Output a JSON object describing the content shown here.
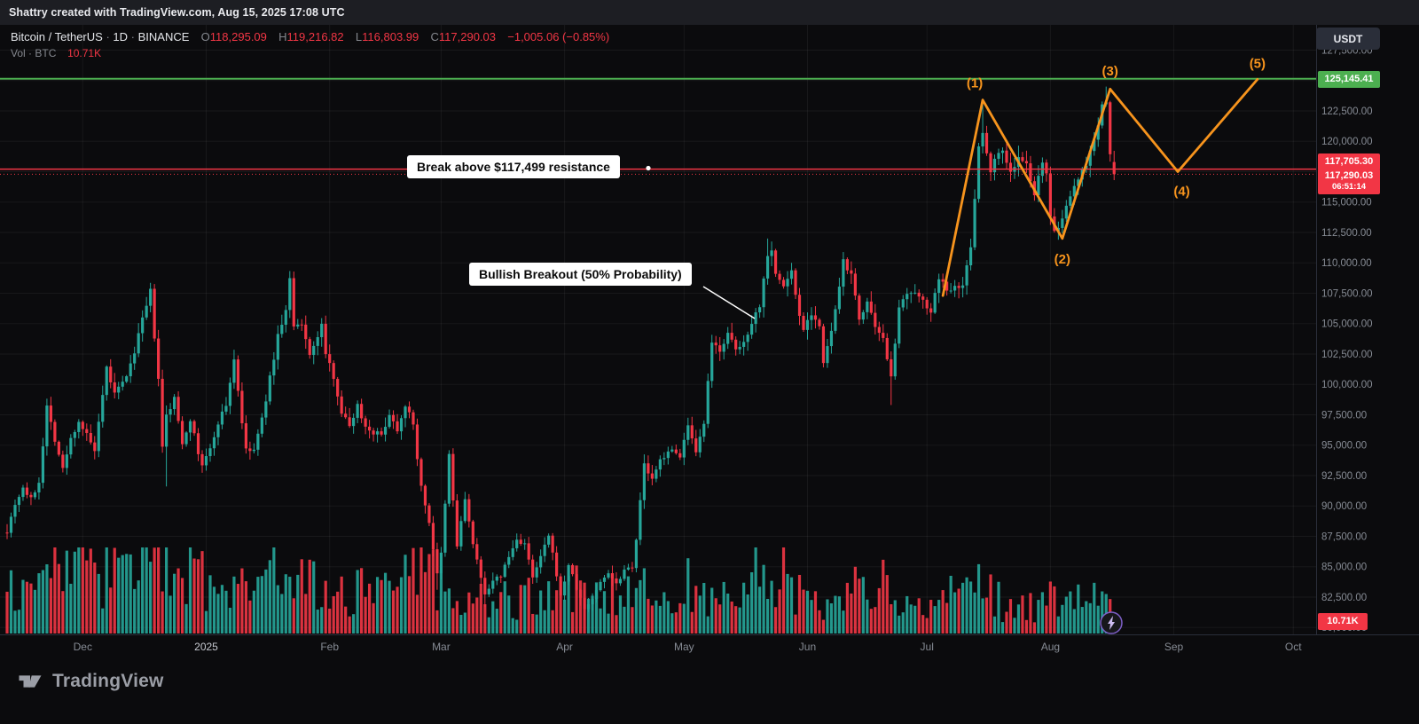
{
  "header": {
    "credit": "Shattry created with TradingView.com, Aug 15, 2025 17:08 UTC"
  },
  "legend": {
    "symbol": "Bitcoin / TetherUS",
    "sep": "·",
    "interval": "1D",
    "exchange": "BINANCE",
    "o_label": "O",
    "o_value": "118,295.09",
    "h_label": "H",
    "h_value": "119,216.82",
    "l_label": "L",
    "l_value": "116,803.99",
    "c_label": "C",
    "c_value": "117,290.03",
    "change": "−1,005.06 (−0.85%)",
    "vol_label": "Vol",
    "vol_unit": "BTC",
    "vol_value": "10.71K"
  },
  "toolbar": {
    "currency": "USDT"
  },
  "callouts": {
    "resistance": "Break above $117,499 resistance",
    "breakout": "Bullish Breakout (50% Probability)"
  },
  "price_badges": {
    "green": "125,145.41",
    "red_level": "117,705.30",
    "last": "117,290.03",
    "countdown": "06:51:14",
    "volume": "10.71K"
  },
  "footer": {
    "brand": "TradingView"
  },
  "chart_data": {
    "type": "candlestick",
    "symbol": "Bitcoin / TetherUS · 1D · BINANCE",
    "days": 278,
    "colors": {
      "up": "#26a69a",
      "down": "#f23645",
      "wave": "#f7941d",
      "green_line": "#4caf50",
      "red_line": "#f23645",
      "axis_text": "#868b94",
      "grid": "rgba(255,255,255,0.055)"
    },
    "y_ticks": [
      127500,
      125000,
      122500,
      120000,
      117500,
      115000,
      112500,
      110000,
      107500,
      105000,
      102500,
      100000,
      97500,
      95000,
      92500,
      90000,
      87500,
      85000,
      82500,
      80000
    ],
    "x_ticks": [
      {
        "label": "Dec",
        "day": 19
      },
      {
        "label": "2025",
        "day": 50,
        "major": true
      },
      {
        "label": "Feb",
        "day": 81
      },
      {
        "label": "Mar",
        "day": 109
      },
      {
        "label": "Apr",
        "day": 140
      },
      {
        "label": "May",
        "day": 170
      },
      {
        "label": "Jun",
        "day": 201
      },
      {
        "label": "Jul",
        "day": 231
      },
      {
        "label": "Aug",
        "day": 262
      },
      {
        "label": "Sep",
        "day": 293
      },
      {
        "label": "Oct",
        "day": 323
      }
    ],
    "levels": {
      "green_line": 125145.41,
      "red_line": 117705.3,
      "last_price": 117290.03
    },
    "last_candle": {
      "open": 118295.09,
      "high": 119216.82,
      "low": 116803.99,
      "close": 117290.03
    },
    "price_anchors": [
      [
        0,
        88000
      ],
      [
        2,
        90200
      ],
      [
        4,
        91500
      ],
      [
        6,
        90500
      ],
      [
        8,
        92000
      ],
      [
        10,
        98200
      ],
      [
        12,
        95500
      ],
      [
        14,
        93000
      ],
      [
        16,
        95500
      ],
      [
        18,
        97000
      ],
      [
        20,
        95800
      ],
      [
        22,
        94500
      ],
      [
        24,
        98900
      ],
      [
        25,
        101300
      ],
      [
        27,
        99200
      ],
      [
        29,
        100100
      ],
      [
        31,
        101500
      ],
      [
        33,
        104100
      ],
      [
        35,
        106400
      ],
      [
        36,
        107600
      ],
      [
        38,
        100300
      ],
      [
        39,
        94800
      ],
      [
        40,
        97400
      ],
      [
        42,
        98800
      ],
      [
        44,
        95200
      ],
      [
        46,
        97200
      ],
      [
        48,
        94300
      ],
      [
        49,
        93400
      ],
      [
        51,
        94600
      ],
      [
        53,
        96900
      ],
      [
        55,
        98300
      ],
      [
        57,
        102100
      ],
      [
        59,
        96900
      ],
      [
        60,
        94500
      ],
      [
        62,
        94600
      ],
      [
        64,
        97100
      ],
      [
        66,
        100500
      ],
      [
        68,
        104000
      ],
      [
        70,
        106100
      ],
      [
        71,
        108600
      ],
      [
        72,
        104700
      ],
      [
        74,
        104800
      ],
      [
        76,
        102600
      ],
      [
        78,
        103700
      ],
      [
        79,
        105100
      ],
      [
        80,
        102400
      ],
      [
        82,
        100700
      ],
      [
        84,
        97700
      ],
      [
        86,
        96600
      ],
      [
        88,
        98300
      ],
      [
        90,
        96500
      ],
      [
        92,
        96100
      ],
      [
        94,
        95800
      ],
      [
        96,
        97600
      ],
      [
        98,
        96300
      ],
      [
        100,
        98400
      ],
      [
        102,
        96600
      ],
      [
        104,
        91500
      ],
      [
        106,
        88700
      ],
      [
        108,
        84300
      ],
      [
        109,
        86000
      ],
      [
        111,
        94200
      ],
      [
        113,
        86700
      ],
      [
        115,
        90600
      ],
      [
        117,
        86800
      ],
      [
        119,
        84000
      ],
      [
        120,
        82900
      ],
      [
        122,
        83700
      ],
      [
        124,
        84300
      ],
      [
        126,
        85800
      ],
      [
        128,
        87200
      ],
      [
        130,
        86900
      ],
      [
        132,
        84000
      ],
      [
        134,
        85800
      ],
      [
        136,
        87500
      ],
      [
        138,
        84400
      ],
      [
        139,
        82500
      ],
      [
        141,
        85200
      ],
      [
        143,
        83200
      ],
      [
        145,
        81500
      ],
      [
        147,
        82400
      ],
      [
        149,
        83700
      ],
      [
        151,
        84600
      ],
      [
        153,
        83600
      ],
      [
        155,
        84800
      ],
      [
        157,
        85100
      ],
      [
        158,
        87300
      ],
      [
        160,
        93400
      ],
      [
        162,
        92100
      ],
      [
        164,
        93700
      ],
      [
        166,
        94600
      ],
      [
        168,
        94300
      ],
      [
        169,
        94200
      ],
      [
        171,
        96500
      ],
      [
        173,
        94200
      ],
      [
        175,
        96800
      ],
      [
        177,
        103300
      ],
      [
        179,
        102900
      ],
      [
        181,
        104100
      ],
      [
        183,
        102800
      ],
      [
        185,
        103400
      ],
      [
        187,
        105200
      ],
      [
        189,
        106500
      ],
      [
        191,
        110800
      ],
      [
        192,
        111200
      ],
      [
        193,
        109000
      ],
      [
        195,
        108100
      ],
      [
        197,
        109300
      ],
      [
        199,
        105600
      ],
      [
        200,
        104700
      ],
      [
        202,
        105900
      ],
      [
        204,
        104800
      ],
      [
        205,
        101600
      ],
      [
        207,
        104400
      ],
      [
        209,
        107800
      ],
      [
        210,
        110300
      ],
      [
        212,
        108900
      ],
      [
        214,
        105400
      ],
      [
        216,
        106800
      ],
      [
        218,
        104500
      ],
      [
        220,
        103600
      ],
      [
        222,
        100900
      ],
      [
        224,
        106100
      ],
      [
        226,
        107400
      ],
      [
        228,
        107300
      ],
      [
        230,
        107200
      ],
      [
        232,
        105700
      ],
      [
        234,
        108900
      ],
      [
        236,
        107600
      ],
      [
        238,
        108300
      ],
      [
        240,
        108100
      ],
      [
        242,
        111300
      ],
      [
        243,
        115500
      ],
      [
        244,
        119800
      ],
      [
        245,
        120500
      ],
      [
        246,
        119100
      ],
      [
        247,
        117700
      ],
      [
        248,
        118700
      ],
      [
        250,
        119300
      ],
      [
        252,
        117400
      ],
      [
        254,
        118600
      ],
      [
        256,
        118000
      ],
      [
        258,
        115700
      ],
      [
        260,
        118100
      ],
      [
        261,
        117600
      ],
      [
        262,
        113900
      ],
      [
        263,
        112800
      ],
      [
        264,
        112600
      ],
      [
        266,
        114600
      ],
      [
        268,
        116500
      ],
      [
        270,
        117400
      ],
      [
        272,
        119000
      ],
      [
        274,
        121300
      ],
      [
        275,
        122800
      ],
      [
        276,
        123300
      ],
      [
        277,
        119000
      ],
      [
        278,
        117290
      ]
    ],
    "wick_events": [
      {
        "day": 36,
        "high": 108300
      },
      {
        "day": 40,
        "low": 91600
      },
      {
        "day": 71,
        "high": 109300
      },
      {
        "day": 108,
        "low": 83100
      },
      {
        "day": 120,
        "low": 81700
      },
      {
        "day": 145,
        "low": 80600
      },
      {
        "day": 191,
        "high": 112000
      },
      {
        "day": 210,
        "high": 110800
      },
      {
        "day": 222,
        "low": 98300
      },
      {
        "day": 245,
        "high": 123200
      },
      {
        "day": 264,
        "low": 111900
      },
      {
        "day": 276,
        "high": 124500
      }
    ],
    "volume_profile": [
      [
        0,
        0.8
      ],
      [
        15,
        0.9
      ],
      [
        30,
        0.8
      ],
      [
        40,
        0.95
      ],
      [
        55,
        0.6
      ],
      [
        70,
        0.65
      ],
      [
        85,
        0.55
      ],
      [
        104,
        0.8
      ],
      [
        110,
        0.6
      ],
      [
        120,
        0.5
      ],
      [
        135,
        0.45
      ],
      [
        145,
        0.55
      ],
      [
        158,
        0.5
      ],
      [
        165,
        0.4
      ],
      [
        175,
        0.5
      ],
      [
        185,
        0.45
      ],
      [
        191,
        0.8
      ],
      [
        200,
        0.4
      ],
      [
        210,
        0.55
      ],
      [
        222,
        0.65
      ],
      [
        230,
        0.35
      ],
      [
        240,
        0.45
      ],
      [
        245,
        0.6
      ],
      [
        252,
        0.3
      ],
      [
        258,
        0.35
      ],
      [
        264,
        0.55
      ],
      [
        270,
        0.45
      ],
      [
        276,
        0.5
      ],
      [
        278,
        0.15
      ]
    ],
    "wave": {
      "points": [
        [
          235,
          107300
        ],
        [
          245,
          123400
        ],
        [
          265,
          112000
        ],
        [
          277,
          124300
        ],
        [
          294,
          117500
        ],
        [
          314,
          125100
        ]
      ],
      "labels": [
        {
          "text": "(1)",
          "day": 243,
          "price": 124800
        },
        {
          "text": "(2)",
          "day": 265,
          "price": 110300
        },
        {
          "text": "(3)",
          "day": 277,
          "price": 125800
        },
        {
          "text": "(4)",
          "day": 295,
          "price": 115900
        },
        {
          "text": "(5)",
          "day": 314,
          "price": 126400
        }
      ]
    }
  }
}
